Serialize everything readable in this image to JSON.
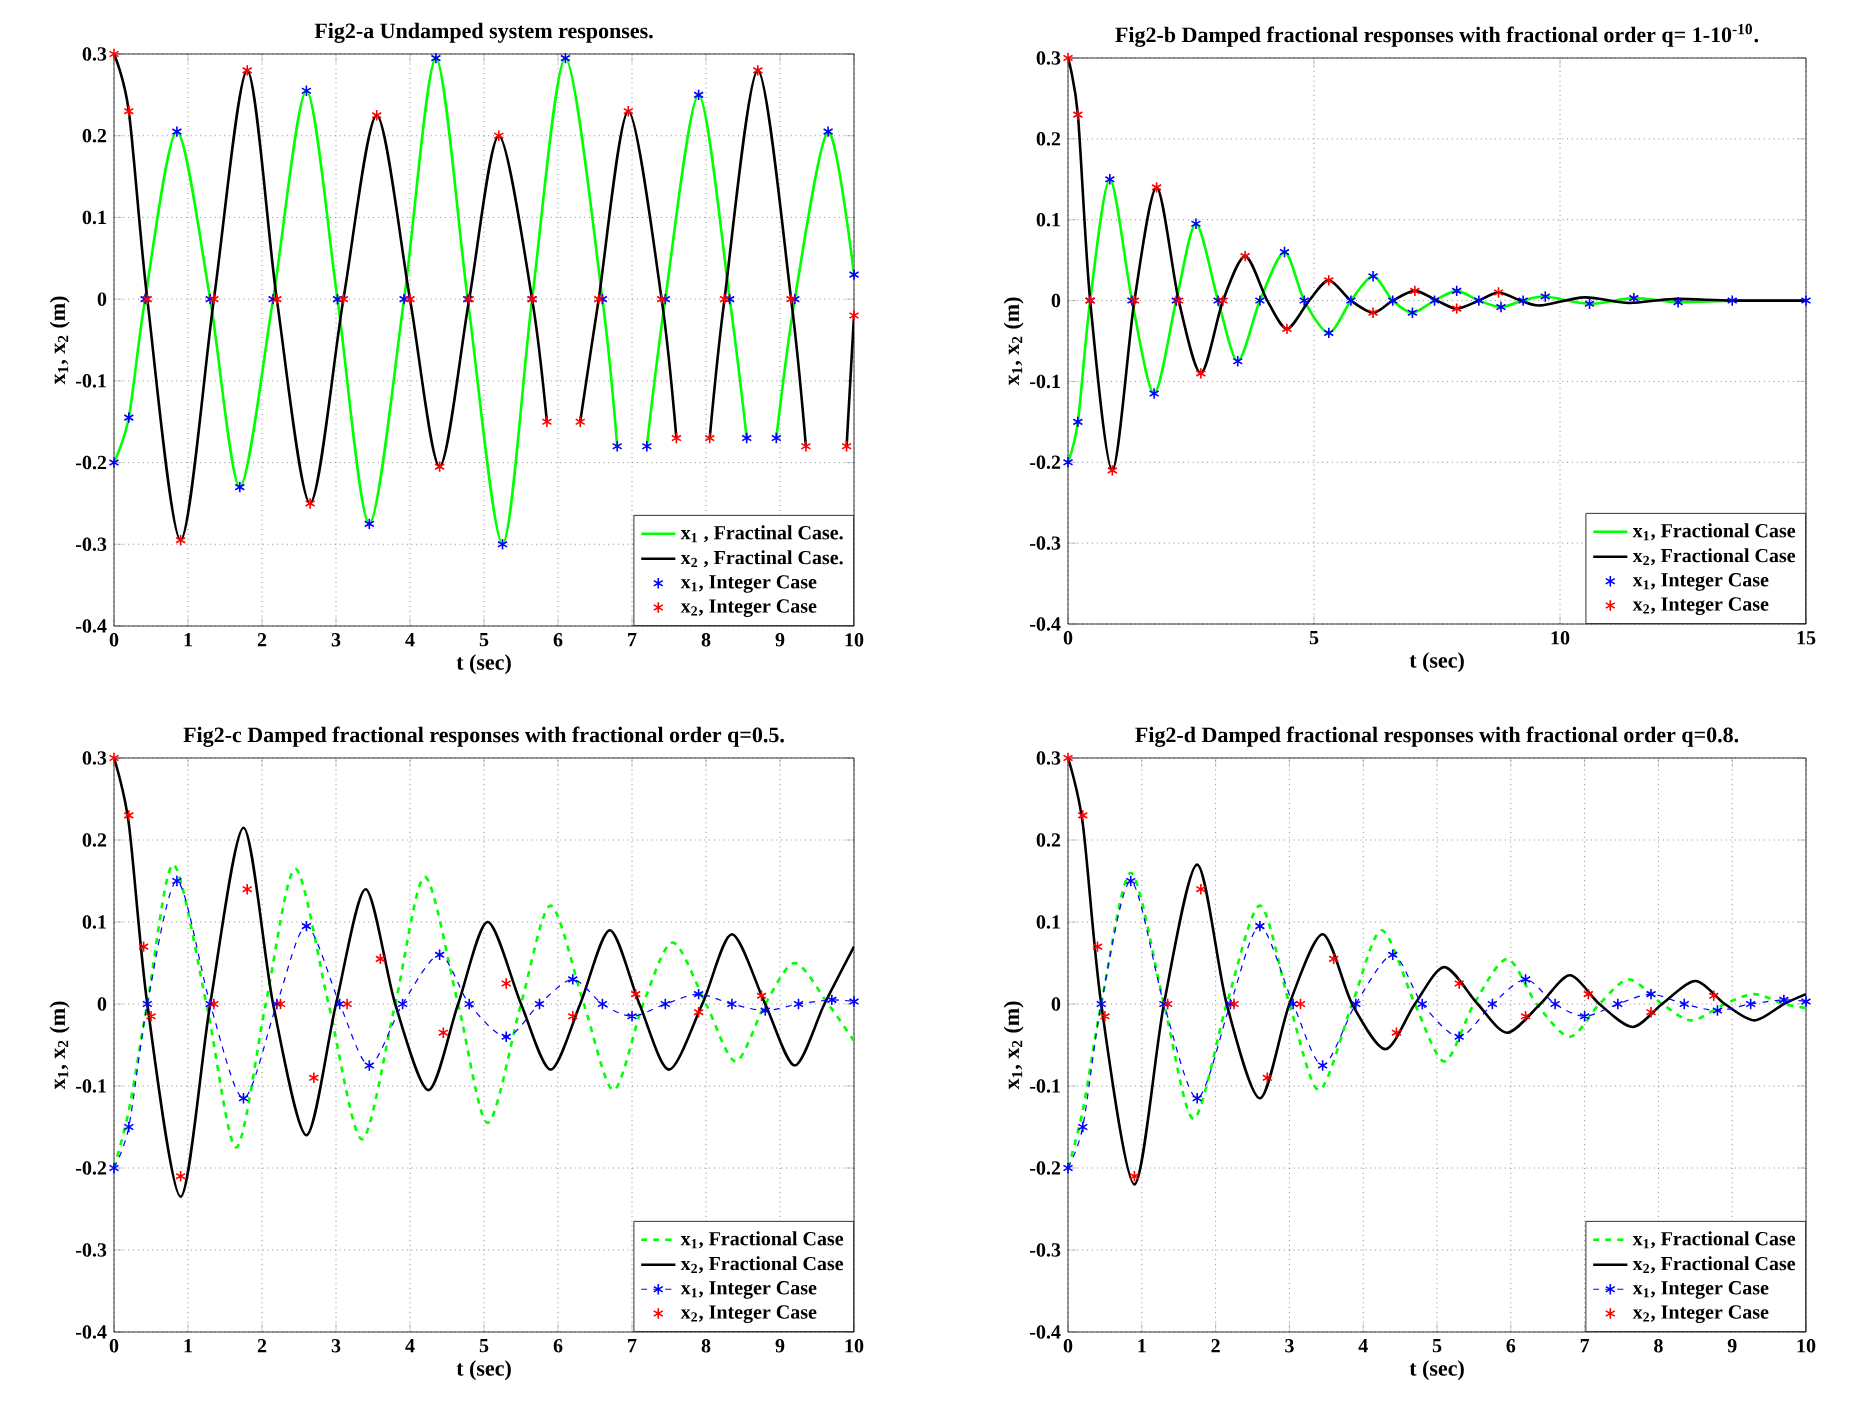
{
  "chart_data": [
    {
      "type": "line",
      "title": "Fig2-a Undamped system responses.",
      "xlabel": "t  (sec)",
      "ylabel": "x$_{1}$, x$_{2}$  (m)",
      "xlim": [
        0,
        10
      ],
      "ylim": [
        -0.4,
        0.3
      ],
      "xticks": [
        0,
        1,
        2,
        3,
        4,
        5,
        6,
        7,
        8,
        9,
        10
      ],
      "yticks": [
        -0.4,
        -0.3,
        -0.2,
        -0.1,
        0,
        0.1,
        0.2,
        0.3
      ],
      "grid": true,
      "legend": "bottom right",
      "series": [
        {
          "name": "x$_{1}$ , Fractinal Case.",
          "type": "line",
          "color": "#00ff00",
          "line_style": "solid",
          "x": [
            0,
            0.2,
            0.42,
            0.85,
            1.3,
            1.7,
            2.15,
            2.6,
            3.02,
            3.45,
            3.92,
            4.35,
            4.78,
            5.25,
            5.65,
            6.1,
            6.6,
            6.8,
            7.0,
            7.2,
            7.45,
            7.9,
            8.32,
            8.55,
            8.75,
            8.95,
            9.2,
            9.65,
            10
          ],
          "values": [
            -0.2,
            -0.145,
            0,
            0.205,
            0,
            -0.23,
            0,
            0.255,
            0,
            -0.275,
            0,
            0.295,
            0,
            -0.3,
            0,
            0.295,
            0,
            -0.18,
            null,
            -0.18,
            0,
            0.25,
            0,
            -0.17,
            null,
            -0.17,
            0,
            0.205,
            0.03
          ]
        },
        {
          "name": "x$_{2}$ , Fractinal Case.",
          "type": "line",
          "color": "#000000",
          "line_style": "solid",
          "x": [
            0,
            0.2,
            0.45,
            0.9,
            1.35,
            1.8,
            2.2,
            2.65,
            3.1,
            3.55,
            4.0,
            4.4,
            4.8,
            5.2,
            5.65,
            5.85,
            6.1,
            6.3,
            6.55,
            6.95,
            7.4,
            7.6,
            7.8,
            8.05,
            8.25,
            8.7,
            9.15,
            9.35,
            9.55,
            9.9,
            10
          ],
          "values": [
            0.3,
            0.23,
            0,
            -0.295,
            0,
            0.28,
            0,
            -0.25,
            0,
            0.225,
            0,
            -0.205,
            0,
            0.2,
            0,
            -0.15,
            null,
            -0.15,
            0,
            0.23,
            0,
            -0.17,
            null,
            -0.17,
            0,
            0.28,
            0,
            -0.18,
            null,
            -0.18,
            -0.02
          ]
        },
        {
          "name": "x$_{1}$, Integer Case",
          "type": "scatter",
          "color": "#0000ff",
          "marker": "cross",
          "x": [
            0,
            0.2,
            0.42,
            0.85,
            1.3,
            1.7,
            2.15,
            2.6,
            3.02,
            3.45,
            3.92,
            4.35,
            4.78,
            5.25,
            5.65,
            6.1,
            6.6,
            6.8,
            7.0,
            7.2,
            7.45,
            7.9,
            8.32,
            8.55,
            8.75,
            8.95,
            9.2,
            9.65,
            10
          ],
          "values": [
            -0.2,
            -0.145,
            0,
            0.205,
            0,
            -0.23,
            0,
            0.255,
            0,
            -0.275,
            0,
            0.295,
            0,
            -0.3,
            0,
            0.295,
            0,
            -0.18,
            null,
            -0.18,
            0,
            0.25,
            0,
            -0.17,
            null,
            -0.17,
            0,
            0.205,
            0.03
          ]
        },
        {
          "name": "x$_{2}$, Integer Case",
          "type": "scatter",
          "color": "#ff0000",
          "marker": "cross",
          "x": [
            0,
            0.2,
            0.45,
            0.9,
            1.35,
            1.8,
            2.2,
            2.65,
            3.1,
            3.55,
            4.0,
            4.4,
            4.8,
            5.2,
            5.65,
            5.85,
            6.1,
            6.3,
            6.55,
            6.95,
            7.4,
            7.6,
            7.8,
            8.05,
            8.25,
            8.7,
            9.15,
            9.35,
            9.55,
            9.9,
            10
          ],
          "values": [
            0.3,
            0.23,
            0,
            -0.295,
            0,
            0.28,
            0,
            -0.25,
            0,
            0.225,
            0,
            -0.205,
            0,
            0.2,
            0,
            -0.15,
            null,
            -0.15,
            0,
            0.23,
            0,
            -0.17,
            null,
            -0.17,
            0,
            0.28,
            0,
            -0.18,
            null,
            -0.18,
            -0.02
          ]
        }
      ]
    },
    {
      "type": "line",
      "title": "Fig2-b Damped fractional responses with fractional order q= 1-10$^{-10}$.",
      "xlabel": "t  (sec)",
      "ylabel": "x$_{1}$, x$_{2}$  (m)",
      "xlim": [
        0,
        15
      ],
      "ylim": [
        -0.4,
        0.3
      ],
      "xticks": [
        0,
        5,
        10,
        15
      ],
      "yticks": [
        -0.4,
        -0.3,
        -0.2,
        -0.1,
        0,
        0.1,
        0.2,
        0.3
      ],
      "grid": true,
      "legend": "bottom right",
      "series": [
        {
          "name": "x$_{1}$, Fractional Case",
          "type": "line",
          "color": "#00ff00",
          "line_style": "solid",
          "x": [
            0,
            0.2,
            0.45,
            0.85,
            1.3,
            1.75,
            2.2,
            2.6,
            3.05,
            3.45,
            3.9,
            4.4,
            4.8,
            5.3,
            5.75,
            6.2,
            6.6,
            7.0,
            7.45,
            7.9,
            8.35,
            8.8,
            9.25,
            9.7,
            10.6,
            11.5,
            12.4,
            13.5,
            15
          ],
          "values": [
            -0.2,
            -0.15,
            0,
            0.15,
            0,
            -0.115,
            0,
            0.095,
            0,
            -0.075,
            0,
            0.06,
            0,
            -0.04,
            0,
            0.03,
            0,
            -0.015,
            0,
            0.012,
            0,
            -0.008,
            0,
            0.005,
            -0.004,
            0.003,
            -0.002,
            0,
            0
          ]
        },
        {
          "name": "x$_{2}$, Fractional Case",
          "type": "line",
          "color": "#000000",
          "line_style": "solid",
          "x": [
            0,
            0.2,
            0.45,
            0.9,
            1.35,
            1.8,
            2.25,
            2.7,
            3.15,
            3.6,
            4.05,
            4.45,
            4.9,
            5.3,
            5.75,
            6.2,
            6.6,
            7.05,
            7.5,
            7.9,
            8.35,
            8.75,
            9.2,
            9.6,
            10.5,
            11.4,
            12.3,
            13.5,
            15
          ],
          "values": [
            0.3,
            0.23,
            0,
            -0.21,
            0,
            0.14,
            0,
            -0.09,
            0,
            0.055,
            0,
            -0.035,
            0,
            0.025,
            0,
            -0.015,
            0,
            0.012,
            0,
            -0.01,
            0,
            0.01,
            0,
            -0.006,
            0.004,
            -0.003,
            0.002,
            0,
            0
          ]
        },
        {
          "name": "x$_{1}$, Integer Case",
          "type": "scatter",
          "color": "#0000ff",
          "marker": "cross",
          "x": [
            0,
            0.2,
            0.45,
            0.85,
            1.3,
            1.75,
            2.2,
            2.6,
            3.05,
            3.45,
            3.9,
            4.4,
            4.8,
            5.3,
            5.75,
            6.2,
            6.6,
            7.0,
            7.45,
            7.9,
            8.35,
            8.8,
            9.25,
            9.7,
            10.6,
            11.5,
            12.4,
            13.5,
            15
          ],
          "values": [
            -0.2,
            -0.15,
            0,
            0.15,
            0,
            -0.115,
            0,
            0.095,
            0,
            -0.075,
            0,
            0.06,
            0,
            -0.04,
            0,
            0.03,
            0,
            -0.015,
            0,
            0.012,
            0,
            -0.008,
            0,
            0.005,
            -0.004,
            0.003,
            -0.002,
            0,
            0
          ]
        },
        {
          "name": "x$_{2}$, Integer Case",
          "type": "scatter",
          "color": "#ff0000",
          "marker": "cross",
          "x": [
            0,
            0.2,
            0.45,
            0.9,
            1.35,
            1.8,
            2.25,
            2.7,
            3.15,
            3.6,
            4.45,
            5.3,
            6.2,
            7.05,
            7.9,
            8.75
          ],
          "values": [
            0.3,
            0.23,
            0,
            -0.21,
            0,
            0.14,
            0,
            -0.09,
            0,
            0.055,
            -0.035,
            0.025,
            -0.015,
            0.012,
            -0.01,
            0.01
          ]
        }
      ]
    },
    {
      "type": "line",
      "title": "Fig2-c Damped fractional responses with fractional order q=0.5.",
      "xlabel": "t  (sec)",
      "ylabel": "x$_{1}$, x$_{2}$  (m)",
      "xlim": [
        0,
        10
      ],
      "ylim": [
        -0.4,
        0.3
      ],
      "xticks": [
        0,
        1,
        2,
        3,
        4,
        5,
        6,
        7,
        8,
        9,
        10
      ],
      "yticks": [
        -0.4,
        -0.3,
        -0.2,
        -0.1,
        0,
        0.1,
        0.2,
        0.3
      ],
      "grid": true,
      "legend": "bottom right",
      "series": [
        {
          "name": "x$_{1}$, Fractional Case",
          "type": "line",
          "color": "#00ff00",
          "line_style": "dashed",
          "x": [
            0,
            0.2,
            0.45,
            0.8,
            1.25,
            1.65,
            2.05,
            2.45,
            2.9,
            3.35,
            3.8,
            4.2,
            4.65,
            5.05,
            5.5,
            5.9,
            6.35,
            6.75,
            7.15,
            7.55,
            8.0,
            8.4,
            8.8,
            9.2,
            9.65,
            10
          ],
          "values": [
            -0.2,
            -0.13,
            0,
            0.17,
            0,
            -0.175,
            0,
            0.165,
            0,
            -0.165,
            0,
            0.155,
            0,
            -0.145,
            0,
            0.12,
            0,
            -0.105,
            0,
            0.075,
            0,
            -0.07,
            0,
            0.05,
            0,
            -0.045
          ]
        },
        {
          "name": "x$_{2}$, Fractional Case",
          "type": "line",
          "color": "#000000",
          "line_style": "solid",
          "x": [
            0,
            0.2,
            0.45,
            0.9,
            1.3,
            1.75,
            2.15,
            2.6,
            3.0,
            3.4,
            3.8,
            4.25,
            4.65,
            5.05,
            5.5,
            5.9,
            6.3,
            6.7,
            7.1,
            7.5,
            7.95,
            8.35,
            8.8,
            9.2,
            9.6,
            10
          ],
          "values": [
            0.3,
            0.22,
            0,
            -0.235,
            0,
            0.215,
            0,
            -0.16,
            0,
            0.14,
            0,
            -0.105,
            0,
            0.1,
            0,
            -0.08,
            0,
            0.09,
            0,
            -0.08,
            0,
            0.085,
            0,
            -0.075,
            0,
            0.07
          ]
        },
        {
          "name": "x$_{1}$, Integer Case",
          "type": "line",
          "color": "#0000ff",
          "line_style": "dashed",
          "marker": "cross",
          "x": [
            0,
            0.2,
            0.45,
            0.85,
            1.3,
            1.75,
            2.2,
            2.6,
            3.05,
            3.45,
            3.9,
            4.4,
            4.8,
            5.3,
            5.75,
            6.2,
            6.6,
            7.0,
            7.45,
            7.9,
            8.35,
            8.8,
            9.25,
            9.7,
            10
          ],
          "values": [
            -0.2,
            -0.15,
            0,
            0.15,
            0,
            -0.115,
            0,
            0.095,
            0,
            -0.075,
            0,
            0.06,
            0,
            -0.04,
            0,
            0.03,
            0,
            -0.015,
            0,
            0.012,
            0,
            -0.008,
            0,
            0.005,
            0.003
          ]
        },
        {
          "name": "x$_{2}$, Integer Case",
          "type": "scatter",
          "color": "#ff0000",
          "marker": "cross",
          "x": [
            0,
            0.2,
            0.4,
            0.5,
            0.9,
            1.35,
            1.8,
            2.25,
            2.7,
            3.15,
            3.6,
            4.45,
            5.3,
            6.2,
            7.05,
            7.9,
            8.75
          ],
          "values": [
            0.3,
            0.23,
            0.07,
            -0.015,
            -0.21,
            0,
            0.14,
            0,
            -0.09,
            0,
            0.055,
            -0.035,
            0.025,
            -0.015,
            0.012,
            -0.01,
            0.01
          ]
        }
      ]
    },
    {
      "type": "line",
      "title": "Fig2-d Damped fractional responses with fractional order q=0.8.",
      "xlabel": "t  (sec)",
      "ylabel": "x$_{1}$, x$_{2}$  (m)",
      "xlim": [
        0,
        10
      ],
      "ylim": [
        -0.4,
        0.3
      ],
      "xticks": [
        0,
        1,
        2,
        3,
        4,
        5,
        6,
        7,
        8,
        9,
        10
      ],
      "yticks": [
        -0.4,
        -0.3,
        -0.2,
        -0.1,
        0,
        0.1,
        0.2,
        0.3
      ],
      "grid": true,
      "legend": "bottom right",
      "series": [
        {
          "name": "x$_{1}$, Fractional Case",
          "type": "line",
          "color": "#00ff00",
          "line_style": "dashed",
          "x": [
            0,
            0.2,
            0.45,
            0.85,
            1.3,
            1.7,
            2.15,
            2.6,
            3.0,
            3.4,
            3.85,
            4.25,
            4.7,
            5.1,
            5.5,
            5.95,
            6.35,
            6.8,
            7.2,
            7.6,
            8.05,
            8.45,
            8.9,
            9.3,
            9.7,
            10
          ],
          "values": [
            -0.2,
            -0.13,
            0,
            0.16,
            0,
            -0.14,
            0,
            0.12,
            0,
            -0.105,
            0,
            0.09,
            0,
            -0.07,
            0,
            0.055,
            0,
            -0.04,
            0,
            0.03,
            0,
            -0.02,
            0,
            0.012,
            0,
            -0.005
          ]
        },
        {
          "name": "x$_{2}$, Fractional Case",
          "type": "line",
          "color": "#000000",
          "line_style": "solid",
          "x": [
            0,
            0.2,
            0.45,
            0.9,
            1.3,
            1.75,
            2.15,
            2.6,
            3.0,
            3.45,
            3.85,
            4.3,
            4.7,
            5.1,
            5.55,
            5.95,
            6.4,
            6.8,
            7.2,
            7.65,
            8.05,
            8.5,
            8.9,
            9.3,
            9.7,
            10
          ],
          "values": [
            0.3,
            0.22,
            0,
            -0.22,
            0,
            0.17,
            0,
            -0.115,
            0,
            0.085,
            0,
            -0.055,
            0,
            0.045,
            0,
            -0.035,
            0,
            0.035,
            0,
            -0.028,
            0,
            0.028,
            0,
            -0.02,
            0,
            0.012
          ]
        },
        {
          "name": "x$_{1}$, Integer Case",
          "type": "line",
          "color": "#0000ff",
          "line_style": "dashed",
          "marker": "cross",
          "x": [
            0,
            0.2,
            0.45,
            0.85,
            1.3,
            1.75,
            2.2,
            2.6,
            3.05,
            3.45,
            3.9,
            4.4,
            4.8,
            5.3,
            5.75,
            6.2,
            6.6,
            7.0,
            7.45,
            7.9,
            8.35,
            8.8,
            9.25,
            9.7,
            10
          ],
          "values": [
            -0.2,
            -0.15,
            0,
            0.15,
            0,
            -0.115,
            0,
            0.095,
            0,
            -0.075,
            0,
            0.06,
            0,
            -0.04,
            0,
            0.03,
            0,
            -0.015,
            0,
            0.012,
            0,
            -0.008,
            0,
            0.005,
            0.003
          ]
        },
        {
          "name": "x$_{2}$, Integer Case",
          "type": "scatter",
          "color": "#ff0000",
          "marker": "cross",
          "x": [
            0,
            0.2,
            0.4,
            0.5,
            0.9,
            1.35,
            1.8,
            2.25,
            2.7,
            3.15,
            3.6,
            4.45,
            5.3,
            6.2,
            7.05,
            7.9,
            8.75
          ],
          "values": [
            0.3,
            0.23,
            0.07,
            -0.015,
            -0.21,
            0,
            0.14,
            0,
            -0.09,
            0,
            0.055,
            -0.035,
            0.025,
            -0.015,
            0.012,
            -0.01,
            0.01
          ]
        }
      ]
    }
  ]
}
